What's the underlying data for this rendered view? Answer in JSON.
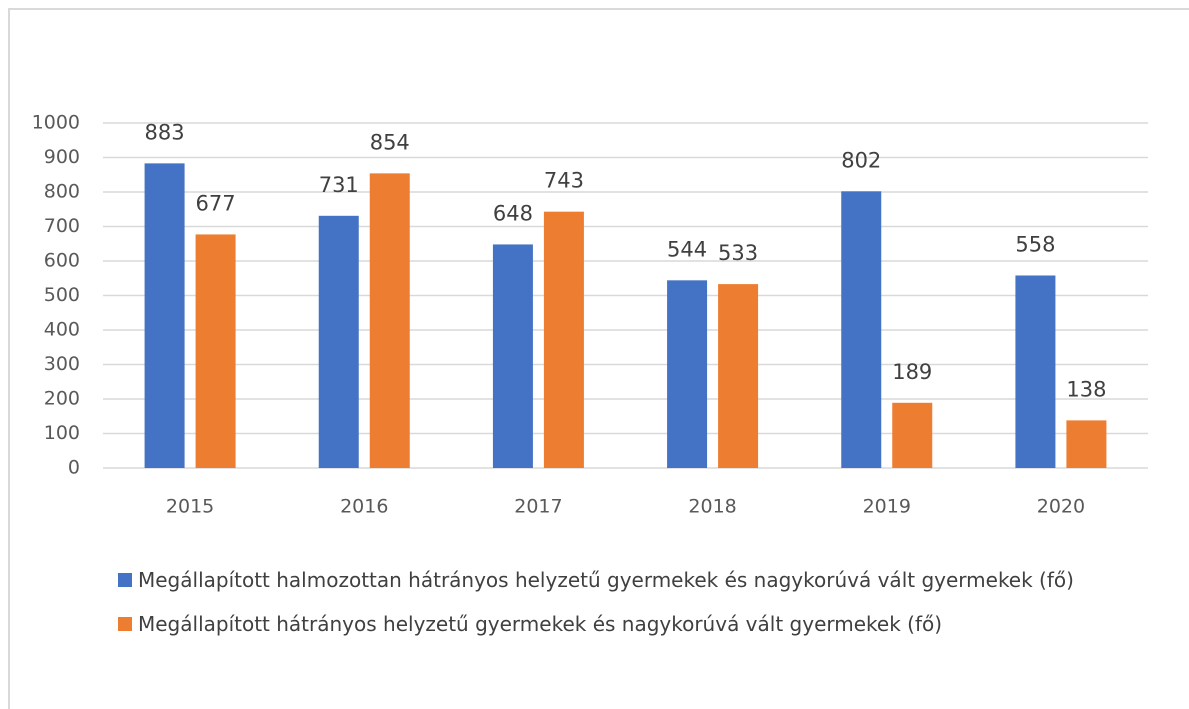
{
  "chart_data": {
    "type": "bar",
    "categories": [
      "2015",
      "2016",
      "2017",
      "2018",
      "2019",
      "2020"
    ],
    "series": [
      {
        "name": "Megállapított halmozottan hátrányos helyzetű gyermekek és nagykorúvá vált gyermekek (fő)",
        "color": "#4472c4",
        "values": [
          883,
          731,
          648,
          544,
          802,
          558
        ]
      },
      {
        "name": "Megállapított hátrányos helyzetű gyermekek és nagykorúvá vált gyermekek (fő)",
        "color": "#ed7d31",
        "values": [
          677,
          854,
          743,
          533,
          189,
          138
        ]
      }
    ],
    "ylim": [
      0,
      1000
    ],
    "yticks": [
      0,
      100,
      200,
      300,
      400,
      500,
      600,
      700,
      800,
      900,
      1000
    ],
    "grid": true,
    "legend": "bottom"
  }
}
